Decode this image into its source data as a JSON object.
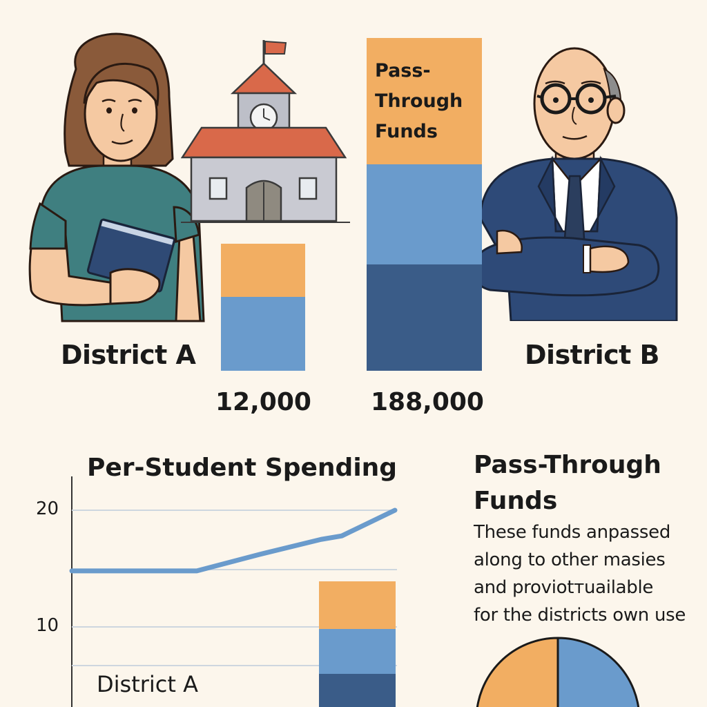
{
  "top": {
    "district_a_label": "District A",
    "district_b_label": "District B",
    "value_a": "12,000",
    "value_b": "188,000",
    "bar_label_line1": "Pass-",
    "bar_label_line2": "Through",
    "bar_label_line3": "Funds"
  },
  "chart": {
    "title": "Per-Student Spending",
    "tick_20": "20",
    "tick_10": "10",
    "district_label": "District A"
  },
  "note": {
    "title_line1": "Pass-Through",
    "title_line2": "Funds",
    "lines": [
      "These funds anpassed",
      "along to other masies",
      "and proviotтuailable",
      "for the districts own use"
    ]
  },
  "colors": {
    "orange": "#f2ae62",
    "mid_blue": "#6a9bcc",
    "dark_blue": "#3a5c88",
    "line_blue": "#6a9bcc",
    "background": "#fcf6ec"
  },
  "chart_data": {
    "type": "line",
    "title": "Per-Student Spending",
    "yticks": [
      10,
      20
    ],
    "x": [
      0,
      1,
      2,
      3,
      4,
      5,
      6
    ],
    "series": [
      {
        "values": [
          14.8,
          14.8,
          14.8,
          16.2,
          17.5,
          17.8,
          20
        ]
      }
    ]
  },
  "illustrations": {
    "left_person": "woman-holding-book-illustration",
    "school": "schoolhouse-illustration",
    "right_person": "man-with-glasses-arms-crossed-illustration"
  }
}
